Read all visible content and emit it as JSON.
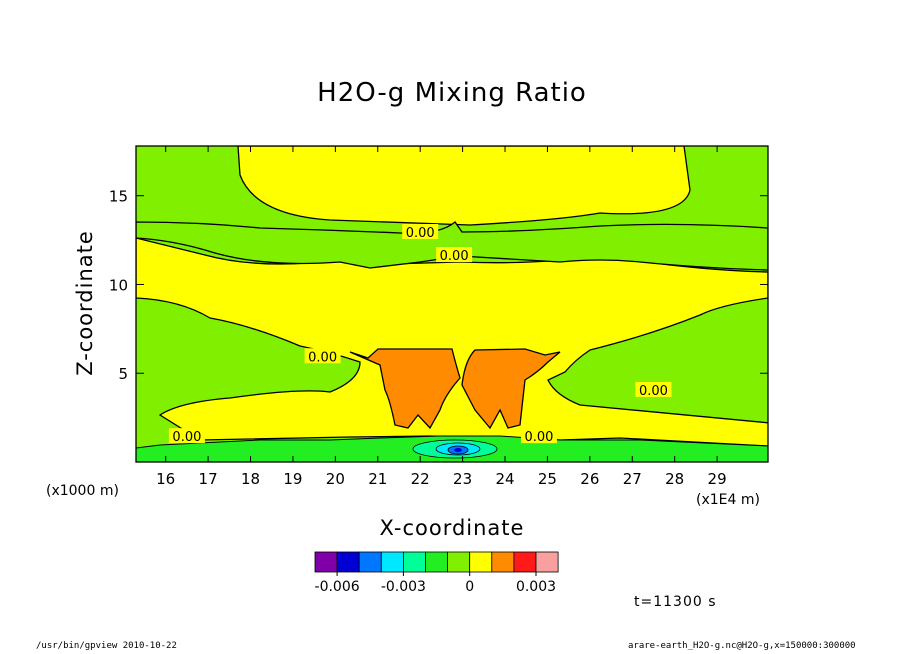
{
  "chart_data": {
    "type": "heatmap",
    "title": "H2O-g Mixing Ratio",
    "xlabel": "X-coordinate",
    "ylabel": "Z-coordinate",
    "x_unit_label": "(x1E4 m)",
    "y_unit_label": "(x1000 m)",
    "xlim": [
      15.3,
      30.2
    ],
    "ylim": [
      0,
      17.8
    ],
    "x_ticks": [
      16,
      17,
      18,
      19,
      20,
      21,
      22,
      23,
      24,
      25,
      26,
      27,
      28,
      29
    ],
    "y_ticks": [
      5,
      10,
      15
    ],
    "contour_level_labels": [
      "0.00",
      "0.00",
      "0.00",
      "0.00",
      "0.00",
      "0.00"
    ],
    "contour_label_positions": [
      {
        "x": 22.0,
        "z": 12.9
      },
      {
        "x": 22.8,
        "z": 11.6
      },
      {
        "x": 19.7,
        "z": 5.9
      },
      {
        "x": 16.5,
        "z": 1.4
      },
      {
        "x": 24.8,
        "z": 1.4
      },
      {
        "x": 27.5,
        "z": 4.0
      }
    ],
    "regions": [
      {
        "name": "upper green band",
        "value_band": "0 to 0.0005",
        "x": [
          15.3,
          30.2
        ],
        "z": [
          12.0,
          13.5
        ]
      },
      {
        "name": "yellow core",
        "value_band": "0.0005 to 0.001",
        "x": [
          18.0,
          27.0
        ],
        "z": [
          2.0,
          17.8
        ]
      },
      {
        "name": "orange plume left",
        "value_band": "0.001 to 0.0015",
        "x": [
          20.6,
          22.4
        ],
        "z": [
          2.1,
          6.5
        ]
      },
      {
        "name": "orange plume right",
        "value_band": "0.001 to 0.0015",
        "x": [
          22.7,
          24.8
        ],
        "z": [
          2.1,
          6.5
        ]
      },
      {
        "name": "negative blue cells",
        "value_band": "-0.004 to -0.001",
        "x": [
          21.8,
          23.2
        ],
        "z": [
          0.2,
          1.2
        ]
      }
    ],
    "colorbar": {
      "colors": [
        "#7f00a8",
        "#0000d4",
        "#0077ff",
        "#00e8ff",
        "#00ff99",
        "#22ee22",
        "#80f000",
        "#ffff00",
        "#ff8c00",
        "#ff1a1a",
        "#f8a0a0"
      ],
      "tick_labels": [
        "-0.006",
        "-0.003",
        "0",
        "0.003"
      ],
      "tick_values": [
        -0.006,
        -0.003,
        0,
        0.003
      ],
      "range": [
        -0.007,
        0.004
      ],
      "step": 0.001
    }
  },
  "annotations": {
    "time": "t=11300 s",
    "footer_left": "/usr/bin/gpview   2010-10-22",
    "footer_right": "arare-earth_H2O-g.nc@H2O-g,x=150000:300000"
  }
}
